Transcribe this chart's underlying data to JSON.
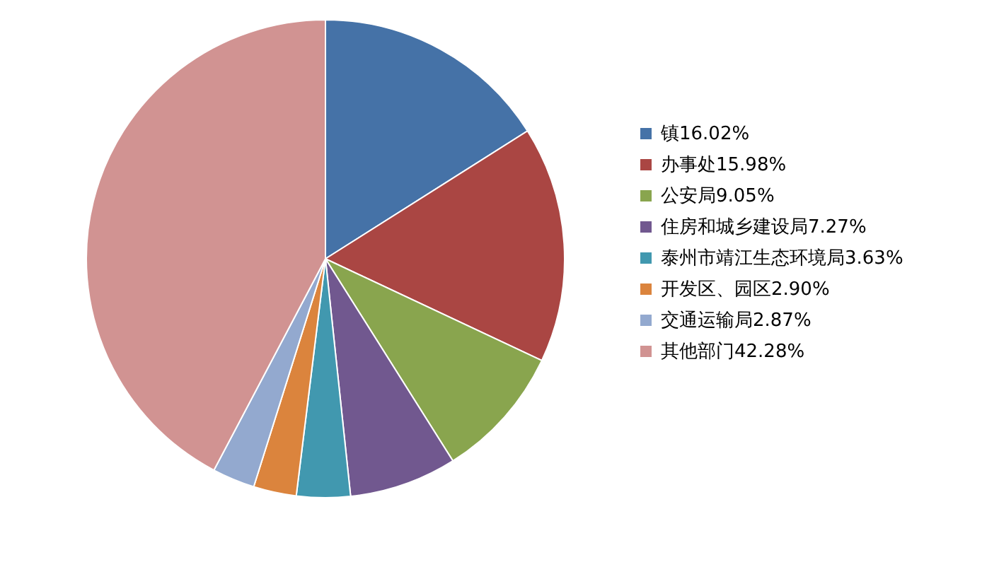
{
  "chart_data": {
    "type": "pie",
    "categories": [
      "镇16.02%",
      "办事处15.98%",
      "公安局9.05%",
      "住房和城乡建设局7.27%",
      "泰州市靖江生态环境局3.63%",
      "开发区、园区2.90%",
      "交通运输局2.87%",
      "其他部门42.28%"
    ],
    "values": [
      16.02,
      15.98,
      9.05,
      7.27,
      3.63,
      2.9,
      2.87,
      42.28
    ],
    "colors": [
      "#4572a7",
      "#aa4643",
      "#89a54e",
      "#71588f",
      "#4198af",
      "#db843d",
      "#93a9cf",
      "#d19392"
    ],
    "legend": "right"
  }
}
